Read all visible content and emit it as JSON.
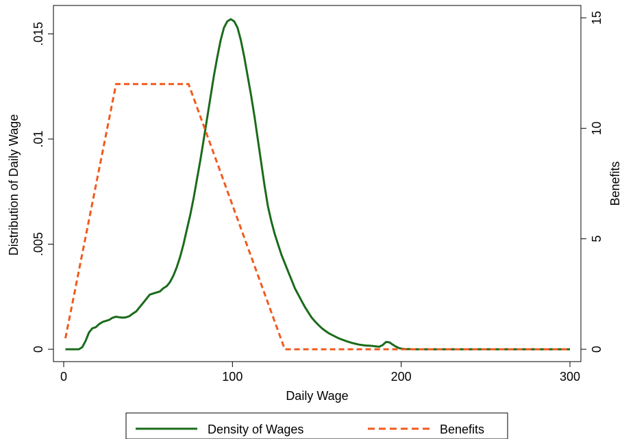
{
  "chart_data": {
    "type": "line",
    "xlabel": "Daily Wage",
    "ylabel_left": "Distribution of Daily Wage",
    "ylabel_right": "Benefits",
    "xlim": [
      0,
      300
    ],
    "ylim_left": [
      0,
      0.0157
    ],
    "ylim_right": [
      0,
      15
    ],
    "x_ticks": [
      0,
      100,
      200,
      300
    ],
    "x_tick_labels": [
      "0",
      "100",
      "200",
      "300"
    ],
    "y_left_ticks": [
      0,
      0.005,
      0.01,
      0.015
    ],
    "y_left_tick_labels": [
      "0",
      ".005",
      ".01",
      ".015"
    ],
    "y_right_ticks": [
      0,
      5,
      10,
      15
    ],
    "y_right_tick_labels": [
      "0",
      "5",
      "10",
      "15"
    ],
    "grid": false,
    "legend_position": "bottom",
    "series": [
      {
        "name": "Density of Wages",
        "axis": "left",
        "color": "#1a6b1a",
        "style": "solid",
        "x": [
          1,
          5,
          9,
          11,
          13,
          15,
          17,
          19,
          21,
          23,
          25,
          27,
          29,
          31,
          33,
          35,
          37,
          39,
          41,
          43,
          45,
          47,
          49,
          51,
          53,
          55,
          57,
          59,
          61,
          63,
          65,
          67,
          69,
          71,
          73,
          75,
          77,
          79,
          81,
          83,
          85,
          87,
          89,
          91,
          93,
          95,
          97,
          99,
          101,
          103,
          105,
          107,
          109,
          111,
          113,
          115,
          117,
          119,
          121,
          123,
          125,
          127,
          129,
          131,
          133,
          135,
          137,
          139,
          141,
          143,
          145,
          147,
          149,
          151,
          153,
          155,
          157,
          159,
          161,
          163,
          165,
          167,
          169,
          171,
          173,
          175,
          177,
          179,
          181,
          183,
          185,
          187,
          189,
          191,
          193,
          195,
          197,
          199,
          201,
          203,
          205,
          207,
          209,
          211,
          213,
          215,
          217,
          219,
          221,
          223,
          226,
          230,
          240,
          260,
          280,
          300
        ],
        "y": [
          0,
          0,
          0,
          0.0001,
          0.0004,
          0.0008,
          0.001,
          0.00105,
          0.0012,
          0.0013,
          0.00135,
          0.0014,
          0.0015,
          0.00155,
          0.00152,
          0.0015,
          0.00152,
          0.00158,
          0.0017,
          0.0018,
          0.002,
          0.0022,
          0.0024,
          0.0026,
          0.00265,
          0.0027,
          0.00275,
          0.0029,
          0.003,
          0.0032,
          0.0035,
          0.0039,
          0.0044,
          0.005,
          0.0057,
          0.0064,
          0.0072,
          0.0081,
          0.009,
          0.01,
          0.011,
          0.012,
          0.013,
          0.0139,
          0.0147,
          0.0153,
          0.0156,
          0.0157,
          0.0156,
          0.0153,
          0.0147,
          0.0139,
          0.013,
          0.0121,
          0.0111,
          0.01,
          0.0089,
          0.0078,
          0.0068,
          0.0061,
          0.0055,
          0.005,
          0.0045,
          0.0041,
          0.0037,
          0.0033,
          0.0029,
          0.0026,
          0.0023,
          0.002,
          0.00175,
          0.0015,
          0.00132,
          0.00115,
          0.001,
          0.00088,
          0.00077,
          0.00068,
          0.0006,
          0.00052,
          0.00046,
          0.0004,
          0.00035,
          0.0003,
          0.00026,
          0.00022,
          0.0002,
          0.00018,
          0.00017,
          0.00016,
          0.00014,
          0.00012,
          0.0002,
          0.00035,
          0.00033,
          0.00022,
          0.00012,
          5e-05,
          2e-05,
          1e-05,
          1e-05,
          0,
          0,
          0,
          0,
          0,
          0,
          0,
          0,
          0,
          0,
          0,
          0,
          0,
          0,
          0
        ]
      },
      {
        "name": "Benefits",
        "axis": "right",
        "color": "#f05a1e",
        "style": "dashed",
        "x": [
          1,
          31,
          74,
          131,
          300
        ],
        "y": [
          0.5,
          12,
          12,
          0,
          0
        ]
      }
    ]
  }
}
